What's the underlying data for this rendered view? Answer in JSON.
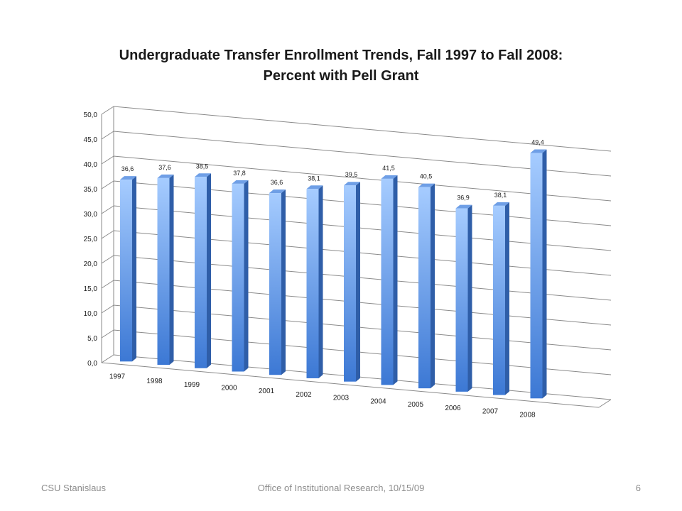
{
  "chart_data": {
    "type": "bar",
    "title_line1": "Undergraduate Transfer Enrollment Trends, Fall 1997 to Fall 2008:",
    "title_line2": "Percent with Pell Grant",
    "categories": [
      "1997",
      "1998",
      "1999",
      "2000",
      "2001",
      "2002",
      "2003",
      "2004",
      "2005",
      "2006",
      "2007",
      "2008"
    ],
    "values": [
      36.6,
      37.6,
      38.5,
      37.8,
      36.6,
      38.1,
      39.5,
      41.5,
      40.5,
      36.9,
      38.1,
      49.4
    ],
    "data_labels": [
      "36,6",
      "37,6",
      "38,5",
      "37,8",
      "36,6",
      "38,1",
      "39,5",
      "41,5",
      "40,5",
      "36,9",
      "38,1",
      "49,4"
    ],
    "y_ticks": [
      "0,0",
      "5,0",
      "10,0",
      "15,0",
      "20,0",
      "25,0",
      "30,0",
      "35,0",
      "40,0",
      "45,0",
      "50,0"
    ],
    "ylim": [
      0,
      50
    ],
    "xlabel": "",
    "ylabel": "",
    "grid": true,
    "style": "3d-column",
    "colors": {
      "bar_light": "#9cc3ff",
      "bar_dark": "#3b73c9",
      "side": "#2f5ea8",
      "top": "#6f9fe6"
    }
  },
  "footer": {
    "left": "CSU Stanislaus",
    "center": "Office of Institutional  Research, 10/15/09",
    "right": "6"
  }
}
